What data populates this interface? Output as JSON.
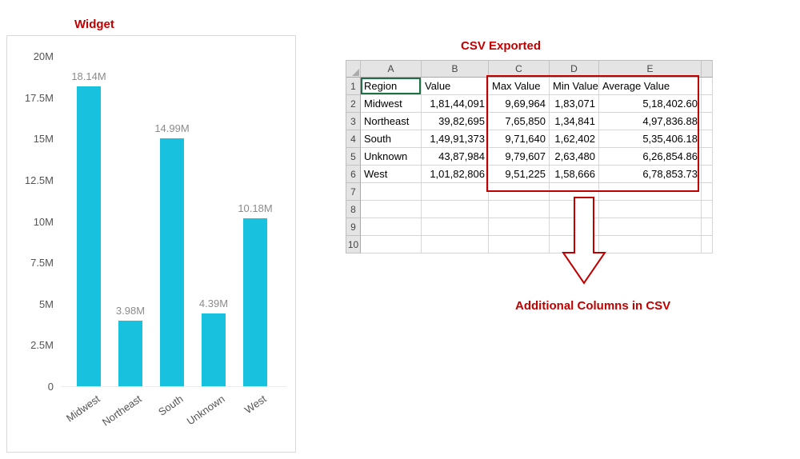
{
  "chart_data": [
    {
      "type": "bar",
      "title": "Widget",
      "categories": [
        "Midwest",
        "Northeast",
        "South",
        "Unknown",
        "West"
      ],
      "values": [
        18.14,
        3.98,
        14.99,
        4.39,
        10.18
      ],
      "value_labels": [
        "18.14M",
        "3.98M",
        "14.99M",
        "4.39M",
        "10.18M"
      ],
      "unit": "M",
      "ylim": [
        0,
        20
      ],
      "yticks": [
        0,
        2.5,
        5,
        7.5,
        10,
        12.5,
        15,
        17.5,
        20
      ],
      "ytick_labels": [
        "0",
        "2.5M",
        "5M",
        "7.5M",
        "10M",
        "12.5M",
        "15M",
        "17.5M",
        "20M"
      ],
      "bar_color": "#18C2DE",
      "grid": false,
      "legend": false
    },
    {
      "type": "table",
      "title": "CSV Exported",
      "columns": [
        "Region",
        "Value",
        "Max Value",
        "Min Value",
        "Average Value"
      ],
      "rows": [
        [
          "Midwest",
          "1,81,44,091",
          "9,69,964",
          "1,83,071",
          "5,18,402.60"
        ],
        [
          "Northeast",
          "39,82,695",
          "7,65,850",
          "1,34,841",
          "4,97,836.88"
        ],
        [
          "South",
          "1,49,91,373",
          "9,71,640",
          "1,62,402",
          "5,35,406.18"
        ],
        [
          "Unknown",
          "43,87,984",
          "9,79,607",
          "2,63,480",
          "6,26,854.86"
        ],
        [
          "West",
          "1,01,82,806",
          "9,51,225",
          "1,58,666",
          "6,78,853.73"
        ]
      ],
      "highlighted_columns": [
        "Max Value",
        "Min Value",
        "Average Value"
      ]
    }
  ],
  "spreadsheet": {
    "column_letters": [
      "A",
      "B",
      "C",
      "D",
      "E"
    ],
    "row_numbers": [
      "1",
      "2",
      "3",
      "4",
      "5",
      "6",
      "7",
      "8",
      "9",
      "10"
    ],
    "selected_cell": "A1"
  },
  "annotations": {
    "additional_columns_label": "Additional Columns in CSV"
  },
  "colors": {
    "accent_red": "#C00000",
    "bar_cyan": "#18C2DE",
    "selection_green": "#1E7145"
  }
}
